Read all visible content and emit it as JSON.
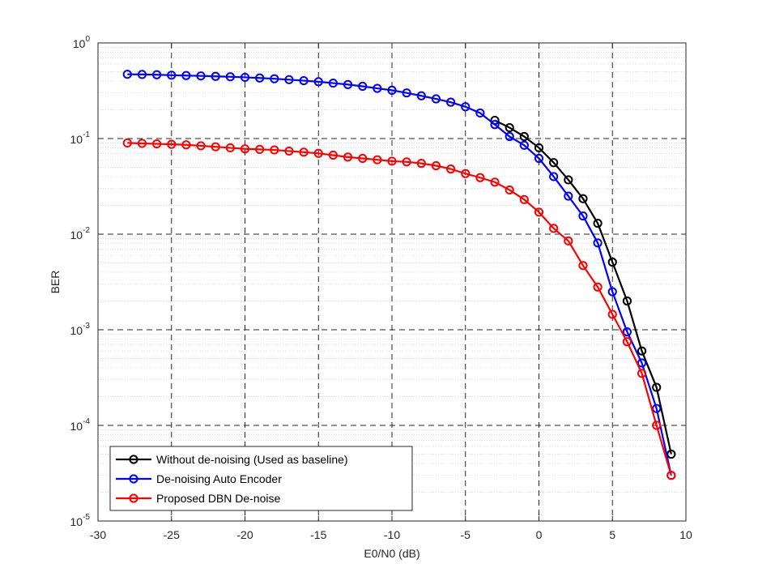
{
  "chart_data": {
    "type": "line",
    "title": "",
    "xlabel": "E0/N0 (dB)",
    "ylabel": "BER",
    "x_scale": "linear",
    "y_scale": "log",
    "xlim": [
      -30,
      10
    ],
    "ylim": [
      1e-05,
      1
    ],
    "x_ticks": [
      -30,
      -25,
      -20,
      -15,
      -10,
      -5,
      0,
      5,
      10
    ],
    "x_tick_labels": [
      "-30",
      "-25",
      "-20",
      "-15",
      "-10",
      "-5",
      "0",
      "5",
      "10"
    ],
    "y_ticks": [
      {
        "value": 1,
        "base": "10",
        "exp": "0"
      },
      {
        "value": 0.1,
        "base": "10",
        "exp": "-1"
      },
      {
        "value": 0.01,
        "base": "10",
        "exp": "-2"
      },
      {
        "value": 0.001,
        "base": "10",
        "exp": "-3"
      },
      {
        "value": 0.0001,
        "base": "10",
        "exp": "-4"
      },
      {
        "value": 1e-05,
        "base": "10",
        "exp": "-5"
      }
    ],
    "grid": true,
    "minor_grid": true,
    "legend_position": "bottom-left",
    "series": [
      {
        "name": "Without de-noising (Used as baseline)",
        "color": "#000000",
        "marker": "circle",
        "x": [
          -3,
          -2,
          -1,
          0,
          1,
          2,
          3,
          4,
          5,
          6,
          7,
          8,
          9
        ],
        "y": [
          0.155,
          0.13,
          0.105,
          0.08,
          0.056,
          0.037,
          0.0235,
          0.013,
          0.0051,
          0.002,
          0.0006,
          0.00025,
          5e-05
        ]
      },
      {
        "name": "De-noising Auto Encoder",
        "color": "#0000ff",
        "marker": "circle",
        "x": [
          -28,
          -27,
          -26,
          -25,
          -24,
          -23,
          -22,
          -21,
          -20,
          -19,
          -18,
          -17,
          -16,
          -15,
          -14,
          -13,
          -12,
          -11,
          -10,
          -9,
          -8,
          -7,
          -6,
          -5,
          -4,
          -3,
          -2,
          -1,
          0,
          1,
          2,
          3,
          4,
          5,
          6,
          7,
          8,
          9
        ],
        "y": [
          0.47,
          0.468,
          0.465,
          0.46,
          0.456,
          0.452,
          0.447,
          0.443,
          0.437,
          0.43,
          0.422,
          0.413,
          0.403,
          0.393,
          0.38,
          0.367,
          0.352,
          0.335,
          0.32,
          0.3,
          0.28,
          0.26,
          0.24,
          0.215,
          0.185,
          0.14,
          0.105,
          0.085,
          0.062,
          0.04,
          0.025,
          0.0155,
          0.0081,
          0.0025,
          0.00095,
          0.00045,
          0.00015,
          3e-05
        ]
      },
      {
        "name": "Proposed DBN De-noise",
        "color": "#ff0000",
        "marker": "circle",
        "x": [
          -28,
          -27,
          -26,
          -25,
          -24,
          -23,
          -22,
          -21,
          -20,
          -19,
          -18,
          -17,
          -16,
          -15,
          -14,
          -13,
          -12,
          -11,
          -10,
          -9,
          -8,
          -7,
          -6,
          -5,
          -4,
          -3,
          -2,
          -1,
          0,
          1,
          2,
          3,
          4,
          5,
          6,
          7,
          8,
          9
        ],
        "y": [
          0.09,
          0.089,
          0.088,
          0.087,
          0.086,
          0.084,
          0.082,
          0.08,
          0.078,
          0.077,
          0.076,
          0.074,
          0.072,
          0.07,
          0.067,
          0.064,
          0.062,
          0.06,
          0.058,
          0.057,
          0.055,
          0.052,
          0.048,
          0.043,
          0.039,
          0.035,
          0.029,
          0.023,
          0.017,
          0.0115,
          0.0085,
          0.0047,
          0.0028,
          0.00145,
          0.00075,
          0.00035,
          0.0001,
          3e-05
        ]
      }
    ]
  }
}
